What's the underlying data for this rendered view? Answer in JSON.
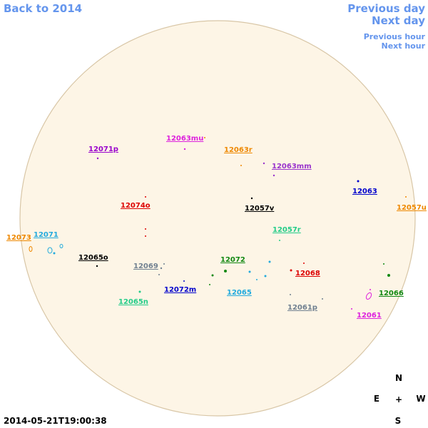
{
  "header": {
    "back_link": "Back to 2014",
    "previous_day": "Previous day",
    "next_day": "Next day",
    "previous_hour": "Previous hour",
    "next_hour": "Next hour"
  },
  "regions": [
    {
      "label": "12071p",
      "color": "#9900cc"
    },
    {
      "label": "12063mu",
      "color": "#dd22dd"
    },
    {
      "label": "12063r",
      "color": "#ee8800"
    },
    {
      "label": "12063mm",
      "color": "#9933cc"
    },
    {
      "label": "12063",
      "color": "#0000cc"
    },
    {
      "label": "12057u",
      "color": "#ee8800"
    },
    {
      "label": "12074o",
      "color": "#dd0000"
    },
    {
      "label": "12057v",
      "color": "#000000"
    },
    {
      "label": "12057r",
      "color": "#22cc88"
    },
    {
      "label": "12073",
      "color": "#ee8800"
    },
    {
      "label": "12071",
      "color": "#22aadd"
    },
    {
      "label": "12065o",
      "color": "#000000"
    },
    {
      "label": "12069",
      "color": "#708090"
    },
    {
      "label": "12072",
      "color": "#118811"
    },
    {
      "label": "12068",
      "color": "#dd0000"
    },
    {
      "label": "12072m",
      "color": "#0000cc"
    },
    {
      "label": "12065",
      "color": "#22aadd"
    },
    {
      "label": "12066",
      "color": "#118811"
    },
    {
      "label": "12065n",
      "color": "#22cc88"
    },
    {
      "label": "12061p",
      "color": "#708090"
    },
    {
      "label": "12061",
      "color": "#dd22dd"
    }
  ],
  "compass": {
    "north": "N",
    "east": "E",
    "center": "+",
    "west": "W",
    "south": "S"
  },
  "timestamp": "2014-05-21T19:00:38"
}
